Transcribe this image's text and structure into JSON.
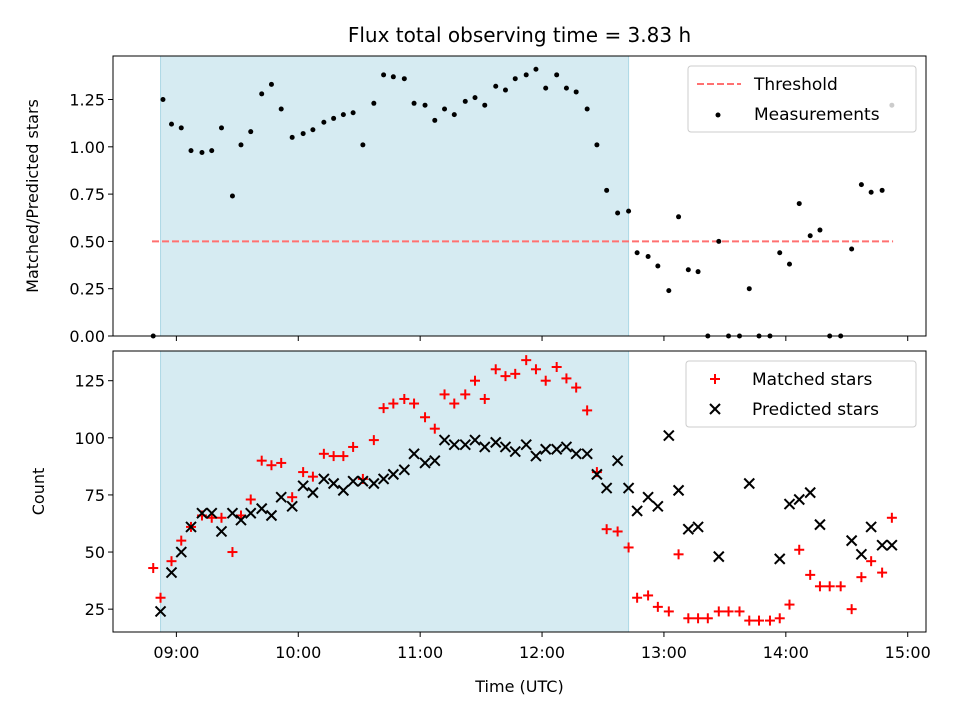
{
  "chart_data": [
    {
      "type": "scatter",
      "title": "Flux total observing time = 3.83 h",
      "xlabel": "",
      "ylabel": "Matched/Predicted stars",
      "xlim": [
        8.48,
        15.15
      ],
      "ylim": [
        0.0,
        1.48
      ],
      "yticks": [
        0.0,
        0.25,
        0.5,
        0.75,
        1.0,
        1.25
      ],
      "ytick_labels": [
        "0.00",
        "0.25",
        "0.50",
        "0.75",
        "1.00",
        "1.25"
      ],
      "xticks": [
        9,
        10,
        11,
        12,
        13,
        14,
        15
      ],
      "shaded_span": [
        8.87,
        12.71
      ],
      "shaded_color": "#add8e6",
      "threshold": {
        "name": "Threshold",
        "y": 0.5,
        "x": [
          8.8,
          14.88
        ],
        "color": "#ff7070"
      },
      "legend_position": "top-right",
      "series": [
        {
          "name": "Measurements",
          "marker": "dot",
          "color": "#000000",
          "x": [
            8.81,
            8.89,
            8.96,
            9.04,
            9.12,
            9.21,
            9.29,
            9.37,
            9.46,
            9.53,
            9.61,
            9.7,
            9.78,
            9.86,
            9.95,
            10.04,
            10.12,
            10.21,
            10.29,
            10.37,
            10.45,
            10.53,
            10.62,
            10.7,
            10.78,
            10.87,
            10.95,
            11.04,
            11.12,
            11.2,
            11.28,
            11.37,
            11.45,
            11.53,
            11.62,
            11.7,
            11.78,
            11.87,
            11.95,
            12.03,
            12.12,
            12.2,
            12.28,
            12.37,
            12.45,
            12.53,
            12.62,
            12.71,
            12.78,
            12.87,
            12.95,
            13.04,
            13.12,
            13.2,
            13.28,
            13.36,
            13.45,
            13.53,
            13.62,
            13.7,
            13.78,
            13.87,
            13.95,
            14.03,
            14.11,
            14.2,
            14.28,
            14.36,
            14.45,
            14.54,
            14.62,
            14.7,
            14.79,
            14.87
          ],
          "y": [
            0.0,
            1.25,
            1.12,
            1.1,
            0.98,
            0.97,
            0.98,
            1.1,
            0.74,
            1.01,
            1.08,
            1.28,
            1.33,
            1.2,
            1.05,
            1.07,
            1.09,
            1.13,
            1.15,
            1.17,
            1.18,
            1.01,
            1.23,
            1.38,
            1.37,
            1.36,
            1.23,
            1.22,
            1.14,
            1.2,
            1.17,
            1.24,
            1.26,
            1.22,
            1.32,
            1.3,
            1.36,
            1.38,
            1.41,
            1.31,
            1.38,
            1.31,
            1.29,
            1.2,
            1.01,
            0.77,
            0.65,
            0.66,
            0.44,
            0.42,
            0.37,
            0.24,
            0.63,
            0.35,
            0.34,
            0.0,
            0.5,
            0.0,
            0.0,
            0.25,
            0.0,
            0.0,
            0.44,
            0.38,
            0.7,
            0.53,
            0.56,
            0.0,
            0.0,
            0.46,
            0.8,
            0.76,
            0.77,
            1.22
          ]
        }
      ]
    },
    {
      "type": "scatter",
      "title": "",
      "xlabel": "Time (UTC)",
      "ylabel": "Count",
      "xlim": [
        8.48,
        15.15
      ],
      "ylim": [
        15,
        138
      ],
      "yticks": [
        25,
        50,
        75,
        100,
        125
      ],
      "ytick_labels": [
        "25",
        "50",
        "75",
        "100",
        "125"
      ],
      "xticks": [
        9,
        10,
        11,
        12,
        13,
        14,
        15
      ],
      "xtick_labels": [
        "09:00",
        "10:00",
        "11:00",
        "12:00",
        "13:00",
        "14:00",
        "15:00"
      ],
      "shaded_span": [
        8.87,
        12.71
      ],
      "shaded_color": "#add8e6",
      "legend_position": "top-right",
      "series": [
        {
          "name": "Matched stars",
          "marker": "plus",
          "color": "#ff0000",
          "x": [
            8.81,
            8.87,
            8.96,
            9.04,
            9.12,
            9.21,
            9.29,
            9.37,
            9.46,
            9.53,
            9.61,
            9.7,
            9.78,
            9.86,
            9.95,
            10.04,
            10.12,
            10.21,
            10.29,
            10.37,
            10.45,
            10.53,
            10.62,
            10.7,
            10.78,
            10.87,
            10.95,
            11.04,
            11.12,
            11.2,
            11.28,
            11.37,
            11.45,
            11.53,
            11.62,
            11.7,
            11.78,
            11.87,
            11.95,
            12.03,
            12.12,
            12.2,
            12.28,
            12.37,
            12.45,
            12.53,
            12.62,
            12.71,
            12.78,
            12.87,
            12.95,
            13.04,
            13.12,
            13.2,
            13.28,
            13.36,
            13.45,
            13.53,
            13.62,
            13.7,
            13.78,
            13.87,
            13.95,
            14.03,
            14.11,
            14.2,
            14.28,
            14.36,
            14.45,
            14.54,
            14.62,
            14.7,
            14.79,
            14.87
          ],
          "y": [
            43,
            30,
            46,
            55,
            61,
            66,
            65,
            65,
            50,
            66,
            73,
            90,
            88,
            89,
            74,
            85,
            83,
            93,
            92,
            92,
            96,
            82,
            99,
            113,
            115,
            117,
            115,
            109,
            104,
            119,
            115,
            119,
            125,
            117,
            130,
            127,
            128,
            134,
            130,
            125,
            131,
            126,
            122,
            112,
            85,
            60,
            59,
            52,
            30,
            31,
            26,
            24,
            49,
            21,
            21,
            21,
            24,
            24,
            24,
            20,
            20,
            20,
            21,
            27,
            51,
            40,
            35,
            35,
            35,
            25,
            39,
            46,
            41,
            65
          ]
        },
        {
          "name": "Predicted stars",
          "marker": "x",
          "color": "#000000",
          "x": [
            8.87,
            8.96,
            9.04,
            9.12,
            9.21,
            9.29,
            9.37,
            9.46,
            9.53,
            9.61,
            9.7,
            9.78,
            9.86,
            9.95,
            10.04,
            10.12,
            10.21,
            10.29,
            10.37,
            10.45,
            10.53,
            10.62,
            10.7,
            10.78,
            10.87,
            10.95,
            11.04,
            11.12,
            11.2,
            11.28,
            11.37,
            11.45,
            11.53,
            11.62,
            11.7,
            11.78,
            11.87,
            11.95,
            12.03,
            12.12,
            12.2,
            12.28,
            12.37,
            12.45,
            12.53,
            12.62,
            12.71,
            12.78,
            12.87,
            12.95,
            13.04,
            13.12,
            13.2,
            13.28,
            13.45,
            13.7,
            13.95,
            14.03,
            14.11,
            14.2,
            14.28,
            14.54,
            14.62,
            14.7,
            14.79,
            14.87
          ],
          "y": [
            24,
            41,
            50,
            61,
            67,
            67,
            59,
            67,
            64,
            67,
            69,
            66,
            74,
            70,
            79,
            76,
            82,
            80,
            77,
            81,
            81,
            80,
            82,
            84,
            86,
            93,
            89,
            90,
            99,
            97,
            97,
            99,
            96,
            98,
            96,
            94,
            97,
            92,
            95,
            95,
            96,
            93,
            93,
            84,
            78,
            90,
            78,
            68,
            74,
            70,
            101,
            77,
            60,
            61,
            48,
            80,
            47,
            71,
            73,
            76,
            62,
            55,
            49,
            61,
            53,
            53
          ]
        }
      ]
    }
  ]
}
